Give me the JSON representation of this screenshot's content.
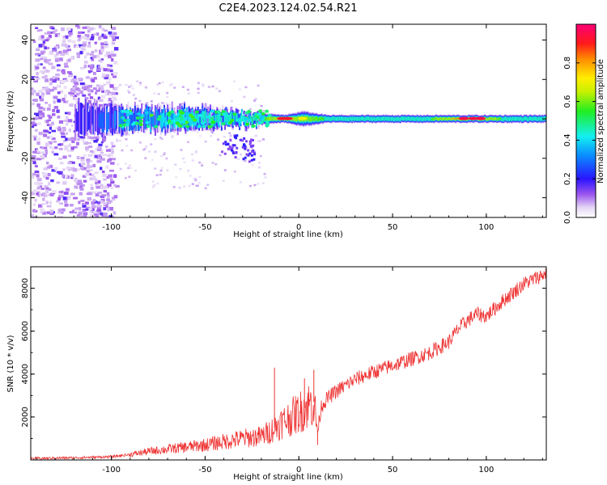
{
  "title": "C2E4.2023.124.02.54.R21",
  "chart_data": [
    {
      "type": "heatmap",
      "xlabel": "Height of straight line (km)",
      "ylabel": "Frequency (Hz)",
      "xlim": [
        -143,
        132
      ],
      "ylim": [
        -50,
        48
      ],
      "xticks": [
        -100,
        -50,
        0,
        50,
        100
      ],
      "yticks": [
        -40,
        -20,
        0,
        20,
        40
      ],
      "colorbar": {
        "label": "Normalized spectral amplitude",
        "range": [
          0,
          1
        ],
        "ticks": [
          0.0,
          0.2,
          0.4,
          0.6,
          0.8
        ],
        "tick_labels": [
          "0.0",
          "0.2",
          "0.4",
          "0.6",
          "0.8"
        ]
      },
      "ridge": [
        {
          "x": -120,
          "half_width_hz": 8,
          "peak": 0.18
        },
        {
          "x": -100,
          "half_width_hz": 7,
          "peak": 0.32
        },
        {
          "x": -80,
          "half_width_hz": 6,
          "peak": 0.4
        },
        {
          "x": -60,
          "half_width_hz": 6,
          "peak": 0.42
        },
        {
          "x": -45,
          "half_width_hz": 5,
          "peak": 0.46
        },
        {
          "x": -30,
          "half_width_hz": 4,
          "peak": 0.44
        },
        {
          "x": -20,
          "half_width_hz": 3,
          "peak": 0.5
        },
        {
          "x": -8,
          "half_width_hz": 2,
          "peak": 0.92
        },
        {
          "x": 2,
          "half_width_hz": 4,
          "peak": 0.62
        },
        {
          "x": 15,
          "half_width_hz": 2,
          "peak": 0.55
        },
        {
          "x": 40,
          "half_width_hz": 2,
          "peak": 0.52
        },
        {
          "x": 70,
          "half_width_hz": 2,
          "peak": 0.55
        },
        {
          "x": 90,
          "half_width_hz": 2,
          "peak": 0.95
        },
        {
          "x": 110,
          "half_width_hz": 2,
          "peak": 0.5
        },
        {
          "x": 132,
          "half_width_hz": 2,
          "peak": 0.5
        }
      ],
      "noise_region": {
        "x_from": -143,
        "x_to": -98,
        "level": 0.2
      }
    },
    {
      "type": "line",
      "xlabel": "Height of straight line (km)",
      "ylabel": "SNR (10 * v/v)",
      "xlim": [
        -143,
        132
      ],
      "ylim": [
        0,
        9000
      ],
      "xticks": [
        -100,
        -50,
        0,
        50,
        100
      ],
      "yticks": [
        2000,
        4000,
        6000,
        8000
      ],
      "series": [
        {
          "name": "SNR",
          "color": "#ee3333",
          "x": [
            -143,
            -120,
            -100,
            -90,
            -80,
            -70,
            -60,
            -50,
            -40,
            -30,
            -20,
            -15,
            -10,
            -5,
            0,
            5,
            8,
            10,
            12,
            15,
            20,
            30,
            40,
            50,
            60,
            70,
            80,
            85,
            90,
            95,
            100,
            110,
            120,
            132
          ],
          "y": [
            70,
            100,
            150,
            250,
            400,
            500,
            600,
            700,
            850,
            1000,
            1100,
            1350,
            1700,
            1950,
            2200,
            2550,
            2700,
            1300,
            2500,
            2850,
            3200,
            3750,
            4100,
            4400,
            4700,
            5000,
            5500,
            6100,
            6500,
            6800,
            6700,
            7500,
            8200,
            8700
          ],
          "spikes": [
            {
              "x": -13,
              "y": 4300
            },
            {
              "x": 8,
              "y": 4200
            },
            {
              "x": 10,
              "y": 700
            },
            {
              "x": 3,
              "y": 3800
            }
          ]
        }
      ]
    }
  ]
}
